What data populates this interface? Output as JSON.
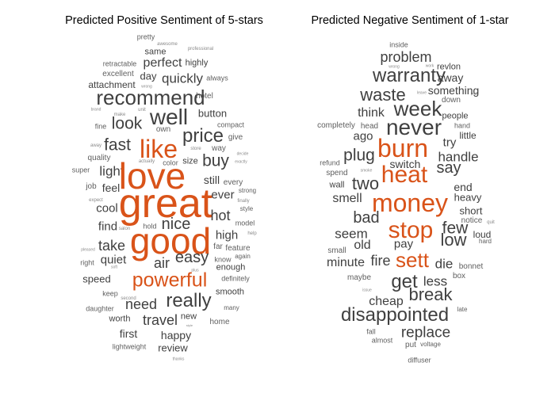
{
  "figure": {
    "left": {
      "title": "Predicted Positive Sentiment of 5-stars",
      "highlight_color": "#d95319",
      "default_color": "#404040",
      "words": [
        "pretty",
        "awesome",
        "same",
        "professional",
        "perfect",
        "retractable",
        "highly",
        "excellent",
        "day",
        "wrong",
        "quickly",
        "always",
        "attachment",
        "great",
        "recommend",
        "hotel",
        "brand",
        "unit",
        "well",
        "button",
        "make",
        "look",
        "own",
        "compact",
        "fine",
        "price",
        "give",
        "like",
        "fast",
        "away",
        "buy",
        "way",
        "store",
        "every",
        "actually",
        "color",
        "size",
        "decide",
        "exactly",
        "light",
        "super",
        "quality",
        "love",
        "still",
        "job",
        "feel",
        "strong",
        "ever",
        "expect",
        "cool",
        "hot",
        "finally",
        "style",
        "find",
        "nice",
        "model",
        "salon",
        "hold",
        "good",
        "high",
        "help",
        "pleased",
        "take",
        "far",
        "feature",
        "quiet",
        "easy",
        "know",
        "again",
        "right",
        "air",
        "soft",
        "enough",
        "plus",
        "speed",
        "powerful",
        "definitely",
        "keep",
        "really",
        "smooth",
        "second",
        "need",
        "many",
        "daughter",
        "worth",
        "travel",
        "new",
        "home",
        "style",
        "first",
        "happy",
        "lightweight",
        "review",
        "thanks"
      ],
      "highlight": [
        "like",
        "love",
        "great",
        "good",
        "powerful"
      ]
    },
    "right": {
      "title": "Predicted Negative Sentiment of 1-star",
      "highlight_color": "#d95319",
      "default_color": "#404040",
      "words": [
        "inside",
        "problem",
        "wrong",
        "work",
        "revlon",
        "warranty",
        "away",
        "something",
        "waste",
        "leave",
        "down",
        "think",
        "week",
        "people",
        "part",
        "completely",
        "head",
        "never",
        "hand",
        "ago",
        "burn",
        "try",
        "little",
        "plug",
        "handle",
        "refund",
        "switch",
        "say",
        "spend",
        "smoke",
        "heat",
        "wall",
        "two",
        "end",
        "smell",
        "money",
        "heavy",
        "bad",
        "short",
        "few",
        "seem",
        "stop",
        "notice",
        "quit",
        "loud",
        "low",
        "small",
        "old",
        "pay",
        "hard",
        "minute",
        "fire",
        "sett",
        "die",
        "bonnet",
        "maybe",
        "less",
        "box",
        "get",
        "break",
        "cheap",
        "issue",
        "late",
        "disappointed",
        "replace",
        "fall",
        "almost",
        "put",
        "voltage",
        "diffuser"
      ],
      "highlight": [
        "burn",
        "heat",
        "money",
        "stop",
        "sett"
      ]
    }
  }
}
